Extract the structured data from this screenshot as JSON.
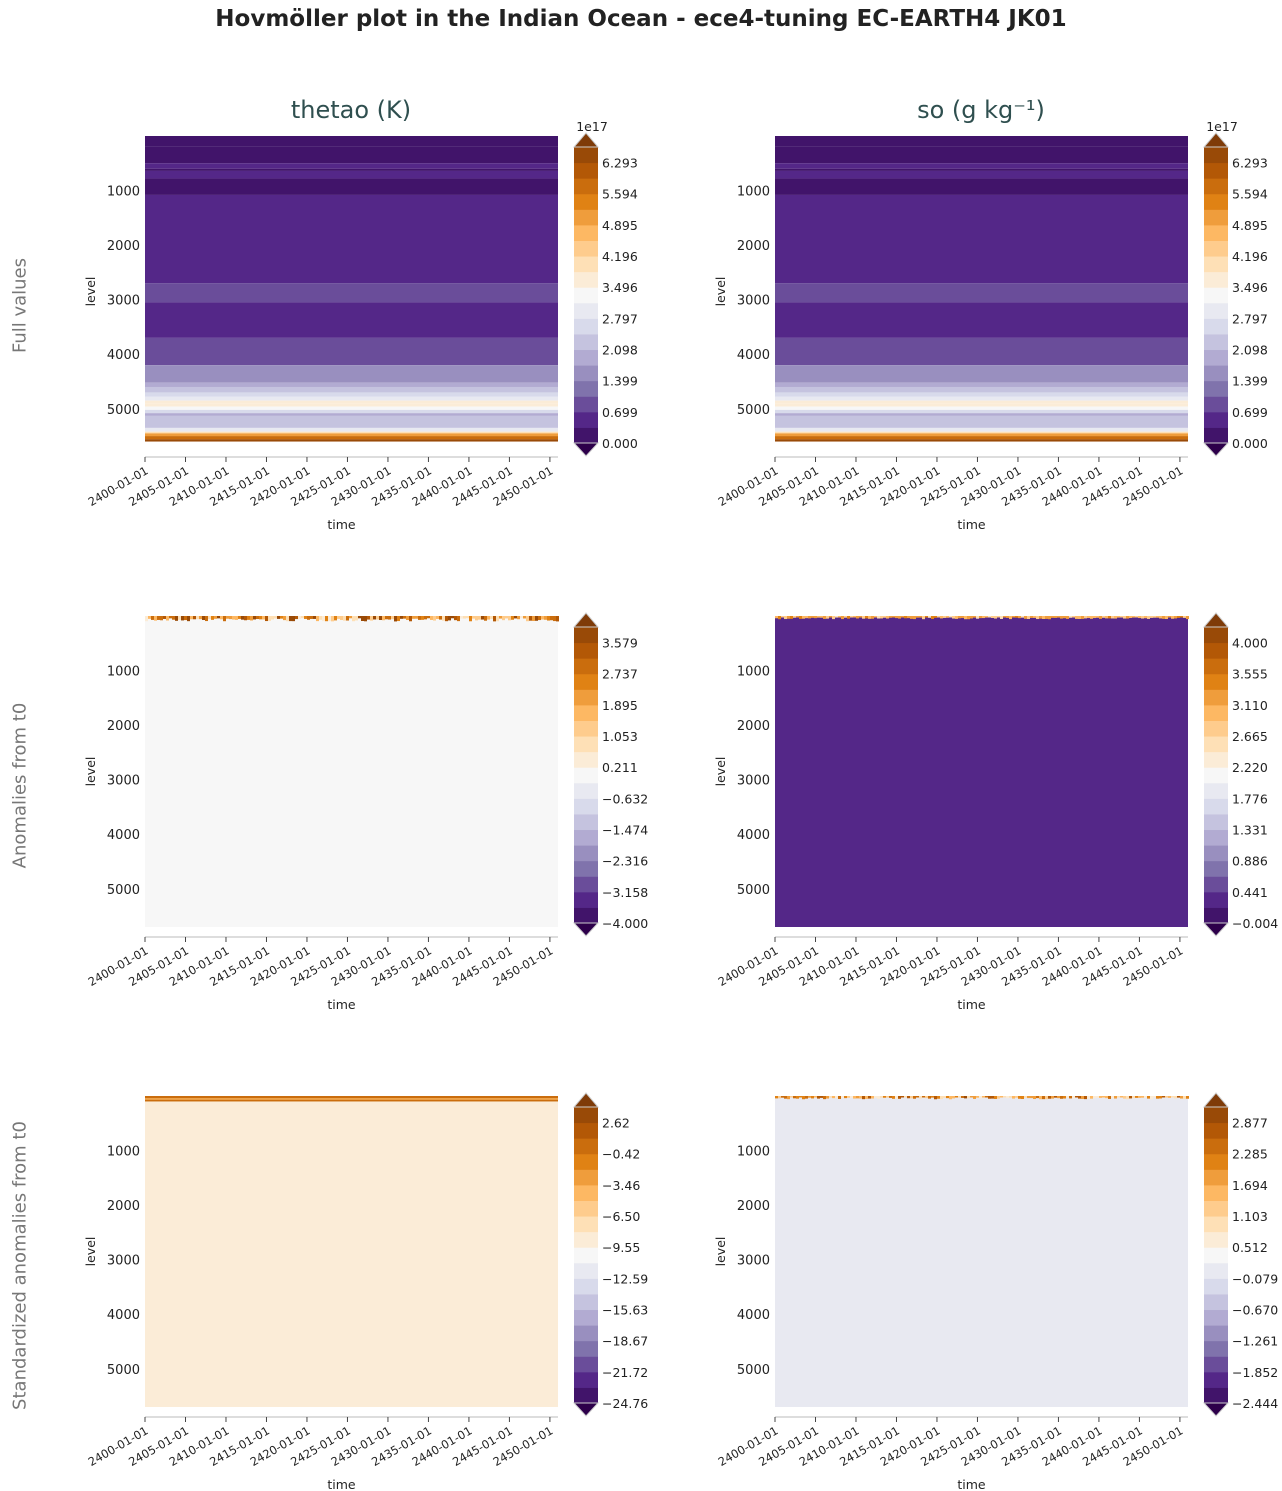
{
  "title": "Hovmöller plot in the Indian Ocean - ece4-tuning EC-EARTH4 JK01",
  "column_titles": [
    "thetao (K)",
    "so (g kg⁻¹)"
  ],
  "row_labels": [
    "Full values",
    "Anomalies from t0",
    "Standardized anomalies from t0"
  ],
  "colors": {
    "colormap": [
      "#2d004b",
      "#542788",
      "#8073ac",
      "#b2abd2",
      "#d8daeb",
      "#f7f7f7",
      "#fee0b6",
      "#fdb863",
      "#e08214",
      "#b35806",
      "#7f3b08"
    ]
  },
  "chart_data": [
    {
      "type": "heatmap",
      "row": 0,
      "col": 0,
      "xlabel": "time",
      "ylabel": "level",
      "y_inverted": true,
      "ylim": [
        0,
        5700
      ],
      "xlim": [
        "2400-01-01",
        "2450-12-31"
      ],
      "xticks": [
        "2400-01-01",
        "2405-01-01",
        "2410-01-01",
        "2415-01-01",
        "2420-01-01",
        "2425-01-01",
        "2430-01-01",
        "2435-01-01",
        "2440-01-01",
        "2445-01-01",
        "2450-01-01"
      ],
      "yticks": [
        1000,
        2000,
        3000,
        4000,
        5000
      ],
      "colorbar": {
        "offset_label": "1e17",
        "ticks": [
          "0.000",
          "0.699",
          "1.399",
          "2.098",
          "2.797",
          "3.496",
          "4.196",
          "4.895",
          "5.594",
          "6.293"
        ],
        "vmin": 0,
        "vmax": 6.643,
        "extend": "both"
      },
      "layers": [
        [
          0,
          190,
          0.2
        ],
        [
          190,
          500,
          0.2
        ],
        [
          500,
          600,
          0.55
        ],
        [
          600,
          640,
          0.2
        ],
        [
          640,
          780,
          0.55
        ],
        [
          780,
          1080,
          0.2
        ],
        [
          1080,
          2700,
          0.55
        ],
        [
          2700,
          3050,
          0.95
        ],
        [
          3050,
          3700,
          0.55
        ],
        [
          3700,
          4200,
          0.95
        ],
        [
          4200,
          4520,
          1.4
        ],
        [
          4520,
          4600,
          1.75
        ],
        [
          4600,
          4700,
          2.1
        ],
        [
          4700,
          4780,
          2.5
        ],
        [
          4780,
          4850,
          2.9
        ],
        [
          4850,
          4900,
          3.5
        ],
        [
          4900,
          4960,
          3.8
        ],
        [
          4960,
          5020,
          3.3
        ],
        [
          5020,
          5080,
          2.6
        ],
        [
          5080,
          5130,
          1.8
        ],
        [
          5130,
          5350,
          2.2
        ],
        [
          5350,
          5420,
          2.9
        ],
        [
          5420,
          5450,
          4.0
        ],
        [
          5450,
          5500,
          5.0
        ],
        [
          5500,
          5560,
          5.9
        ],
        [
          5560,
          5600,
          6.4
        ]
      ]
    },
    {
      "type": "heatmap",
      "row": 0,
      "col": 1,
      "xlabel": "time",
      "ylabel": "level",
      "y_inverted": true,
      "ylim": [
        0,
        5700
      ],
      "xlim": [
        "2400-01-01",
        "2450-12-31"
      ],
      "xticks": [
        "2400-01-01",
        "2405-01-01",
        "2410-01-01",
        "2415-01-01",
        "2420-01-01",
        "2425-01-01",
        "2430-01-01",
        "2435-01-01",
        "2440-01-01",
        "2445-01-01",
        "2450-01-01"
      ],
      "yticks": [
        1000,
        2000,
        3000,
        4000,
        5000
      ],
      "colorbar": {
        "offset_label": "1e17",
        "ticks": [
          "0.000",
          "0.699",
          "1.399",
          "2.098",
          "2.797",
          "3.496",
          "4.196",
          "4.895",
          "5.594",
          "6.293"
        ],
        "vmin": 0,
        "vmax": 6.643,
        "extend": "both"
      },
      "layers": [
        [
          0,
          190,
          0.2
        ],
        [
          190,
          500,
          0.2
        ],
        [
          500,
          600,
          0.55
        ],
        [
          600,
          640,
          0.2
        ],
        [
          640,
          780,
          0.55
        ],
        [
          780,
          1080,
          0.2
        ],
        [
          1080,
          2700,
          0.55
        ],
        [
          2700,
          3050,
          0.95
        ],
        [
          3050,
          3700,
          0.55
        ],
        [
          3700,
          4200,
          0.95
        ],
        [
          4200,
          4520,
          1.4
        ],
        [
          4520,
          4600,
          1.75
        ],
        [
          4600,
          4700,
          2.1
        ],
        [
          4700,
          4780,
          2.5
        ],
        [
          4780,
          4850,
          2.9
        ],
        [
          4850,
          4900,
          3.5
        ],
        [
          4900,
          4960,
          3.8
        ],
        [
          4960,
          5020,
          3.3
        ],
        [
          5020,
          5080,
          2.6
        ],
        [
          5080,
          5130,
          1.8
        ],
        [
          5130,
          5350,
          2.2
        ],
        [
          5350,
          5420,
          2.9
        ],
        [
          5420,
          5450,
          4.0
        ],
        [
          5450,
          5500,
          5.0
        ],
        [
          5500,
          5560,
          5.9
        ],
        [
          5560,
          5600,
          6.4
        ]
      ]
    },
    {
      "type": "heatmap",
      "row": 1,
      "col": 0,
      "xlabel": "time",
      "ylabel": "level",
      "y_inverted": true,
      "ylim": [
        0,
        5700
      ],
      "xlim": [
        "2400-01-01",
        "2450-12-31"
      ],
      "xticks": [
        "2400-01-01",
        "2405-01-01",
        "2410-01-01",
        "2415-01-01",
        "2420-01-01",
        "2425-01-01",
        "2430-01-01",
        "2435-01-01",
        "2440-01-01",
        "2445-01-01",
        "2450-01-01"
      ],
      "yticks": [
        1000,
        2000,
        3000,
        4000,
        5000
      ],
      "colorbar": {
        "offset_label": "",
        "ticks": [
          "−4.000",
          "−3.158",
          "−2.316",
          "−1.474",
          "−0.632",
          "0.211",
          "1.053",
          "1.895",
          "2.737",
          "3.579"
        ],
        "vmin": -4.0,
        "vmax": 4.0,
        "extend": "both"
      },
      "layers": [
        [
          0,
          5700,
          0.1
        ]
      ],
      "surface_noise": {
        "top": 0,
        "bottom": 100,
        "vmin": 0.5,
        "vmax": 4.0
      }
    },
    {
      "type": "heatmap",
      "row": 1,
      "col": 1,
      "xlabel": "time",
      "ylabel": "level",
      "y_inverted": true,
      "ylim": [
        0,
        5700
      ],
      "xlim": [
        "2400-01-01",
        "2450-12-31"
      ],
      "xticks": [
        "2400-01-01",
        "2405-01-01",
        "2410-01-01",
        "2415-01-01",
        "2420-01-01",
        "2425-01-01",
        "2430-01-01",
        "2435-01-01",
        "2440-01-01",
        "2445-01-01",
        "2450-01-01"
      ],
      "yticks": [
        1000,
        2000,
        3000,
        4000,
        5000
      ],
      "colorbar": {
        "offset_label": "",
        "ticks": [
          "−0.004",
          "0.441",
          "0.886",
          "1.331",
          "1.776",
          "2.220",
          "2.665",
          "3.110",
          "3.555",
          "4.000"
        ],
        "vmin": -0.004,
        "vmax": 4.222,
        "extend": "both"
      },
      "layers": [
        [
          0,
          5700,
          0.3
        ]
      ],
      "surface_noise": {
        "top": 0,
        "bottom": 60,
        "vmin": 2.6,
        "vmax": 3.4
      }
    },
    {
      "type": "heatmap",
      "row": 2,
      "col": 0,
      "xlabel": "time",
      "ylabel": "level",
      "y_inverted": true,
      "ylim": [
        0,
        5700
      ],
      "xlim": [
        "2400-01-01",
        "2450-12-31"
      ],
      "xticks": [
        "2400-01-01",
        "2405-01-01",
        "2410-01-01",
        "2415-01-01",
        "2420-01-01",
        "2425-01-01",
        "2430-01-01",
        "2435-01-01",
        "2440-01-01",
        "2445-01-01",
        "2450-01-01"
      ],
      "yticks": [
        1000,
        2000,
        3000,
        4000,
        5000
      ],
      "colorbar": {
        "offset_label": "",
        "ticks": [
          "−24.76",
          "−21.72",
          "−18.67",
          "−15.63",
          "−12.59",
          "−9.55",
          "−6.50",
          "−3.46",
          "−0.42",
          "2.62"
        ],
        "vmin": -24.76,
        "vmax": 4.14,
        "extend": "both"
      },
      "layers": [
        [
          0,
          5700,
          -8.5
        ],
        [
          0,
          40,
          0.5
        ],
        [
          40,
          70,
          -3.0
        ],
        [
          70,
          100,
          0.5
        ]
      ]
    },
    {
      "type": "heatmap",
      "row": 2,
      "col": 1,
      "xlabel": "time",
      "ylabel": "level",
      "y_inverted": true,
      "ylim": [
        0,
        5700
      ],
      "xlim": [
        "2400-01-01",
        "2450-12-31"
      ],
      "xticks": [
        "2400-01-01",
        "2405-01-01",
        "2410-01-01",
        "2415-01-01",
        "2420-01-01",
        "2425-01-01",
        "2430-01-01",
        "2435-01-01",
        "2440-01-01",
        "2445-01-01",
        "2450-01-01"
      ],
      "yticks": [
        1000,
        2000,
        3000,
        4000,
        5000
      ],
      "colorbar": {
        "offset_label": "",
        "ticks": [
          "−2.444",
          "−1.852",
          "−1.261",
          "−0.670",
          "−0.079",
          "0.512",
          "1.103",
          "1.694",
          "2.285",
          "2.877"
        ],
        "vmin": -2.444,
        "vmax": 3.173,
        "extend": "both"
      },
      "layers": [
        [
          0,
          5700,
          0.2
        ]
      ],
      "surface_noise": {
        "top": 0,
        "bottom": 60,
        "vmin": 0.6,
        "vmax": 2.9
      }
    }
  ]
}
